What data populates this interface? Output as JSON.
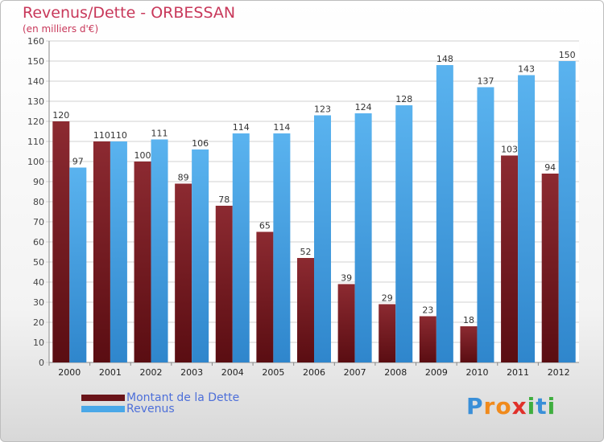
{
  "title": "Revenus/Dette - ORBESSAN",
  "subtitle": "(en milliers d'€)",
  "logo": [
    "P",
    "r",
    "o",
    "x",
    "i",
    "t",
    "i"
  ],
  "legend": [
    {
      "label": "Montant de la Dette",
      "color": "#7a1c22"
    },
    {
      "label": "Revenus",
      "color": "#4aa8e8"
    }
  ],
  "chart_data": {
    "type": "bar",
    "title": "Revenus/Dette - ORBESSAN",
    "subtitle": "(en milliers d'€)",
    "categories": [
      "2000",
      "2001",
      "2002",
      "2003",
      "2004",
      "2005",
      "2006",
      "2007",
      "2008",
      "2009",
      "2010",
      "2011",
      "2012"
    ],
    "series": [
      {
        "name": "Montant de la Dette",
        "color": "#7a1c22",
        "values": [
          120,
          110,
          100,
          89,
          78,
          65,
          52,
          39,
          29,
          23,
          18,
          103,
          94
        ]
      },
      {
        "name": "Revenus",
        "color": "#4aa8e8",
        "values": [
          97,
          110,
          111,
          106,
          114,
          114,
          123,
          124,
          128,
          148,
          137,
          143,
          150
        ]
      }
    ],
    "ylim": [
      0,
      160
    ],
    "yticks": [
      0,
      10,
      20,
      30,
      40,
      50,
      60,
      70,
      80,
      90,
      100,
      110,
      120,
      130,
      140,
      150,
      160
    ],
    "grid": true,
    "legend": "bottom-left"
  }
}
